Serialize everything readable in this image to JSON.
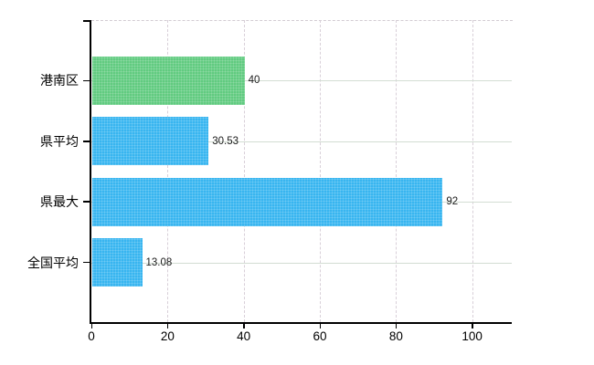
{
  "chart_data": {
    "type": "bar",
    "orientation": "horizontal",
    "title": "",
    "categories": [
      "港南区",
      "県平均",
      "県最大",
      "全国平均"
    ],
    "values": [
      40,
      30.53,
      92,
      13.08
    ],
    "value_labels": [
      "40",
      "30.53",
      "92",
      "13.08"
    ],
    "bar_colors": [
      "#61cb80",
      "#38b5f0",
      "#38b5f0",
      "#38b5f0"
    ],
    "x_tick_values": [
      0,
      20,
      40,
      60,
      80,
      100
    ],
    "x_tick_labels": [
      "0",
      "20",
      "40",
      "60",
      "80",
      "100"
    ],
    "xlim": [
      0,
      110.4
    ],
    "legend": "none",
    "grid": {
      "vertical_style": "dashed",
      "horizontal_style": "solid"
    }
  },
  "colors": {
    "bar_blue": "#38b5f0",
    "bar_green": "#61cb80",
    "axis": "#000000",
    "grid_vertical": "#d8cfd8",
    "grid_horizontal": "#d3ddd3",
    "plot_border_dashed": "#d2cbd2",
    "label_text": "#1a1a1a",
    "background": "#ffffff"
  }
}
